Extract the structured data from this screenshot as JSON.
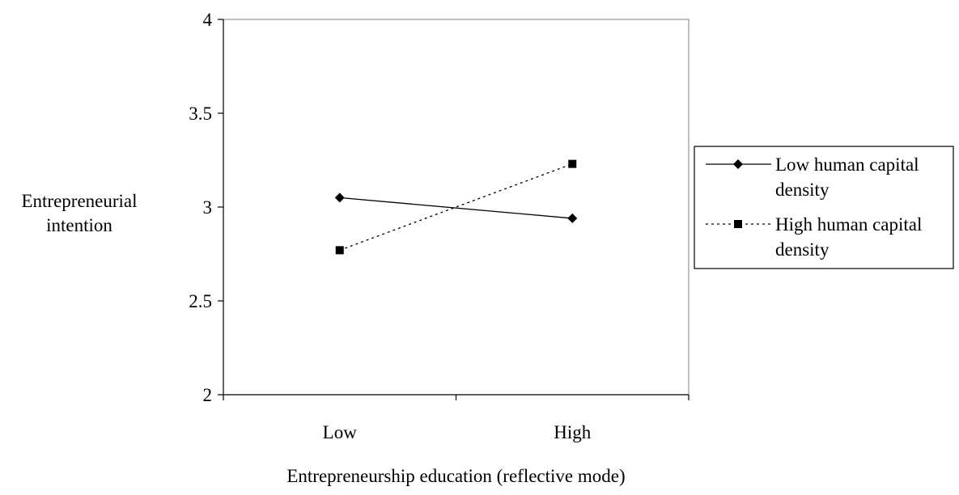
{
  "chart_data": {
    "type": "line",
    "title": "",
    "xlabel": "Entrepreneurship education (reflective mode)",
    "ylabel_lines": [
      "Entrepreneurial",
      "intention"
    ],
    "categories": [
      "Low",
      "High"
    ],
    "ylim": [
      2,
      4
    ],
    "yticks": [
      2,
      2.5,
      3,
      3.5,
      4
    ],
    "ytick_labels": [
      "2",
      "2.5",
      "3",
      "3.5",
      "4"
    ],
    "grid": false,
    "legend_position": "right",
    "series": [
      {
        "name_lines": [
          "Low human capital",
          "density"
        ],
        "values": [
          3.05,
          2.94
        ],
        "marker": "diamond",
        "line_style": "solid",
        "color": "#000000"
      },
      {
        "name_lines": [
          "High human capital",
          "density"
        ],
        "values": [
          2.77,
          3.23
        ],
        "marker": "square",
        "line_style": "dotted",
        "color": "#000000"
      }
    ]
  }
}
